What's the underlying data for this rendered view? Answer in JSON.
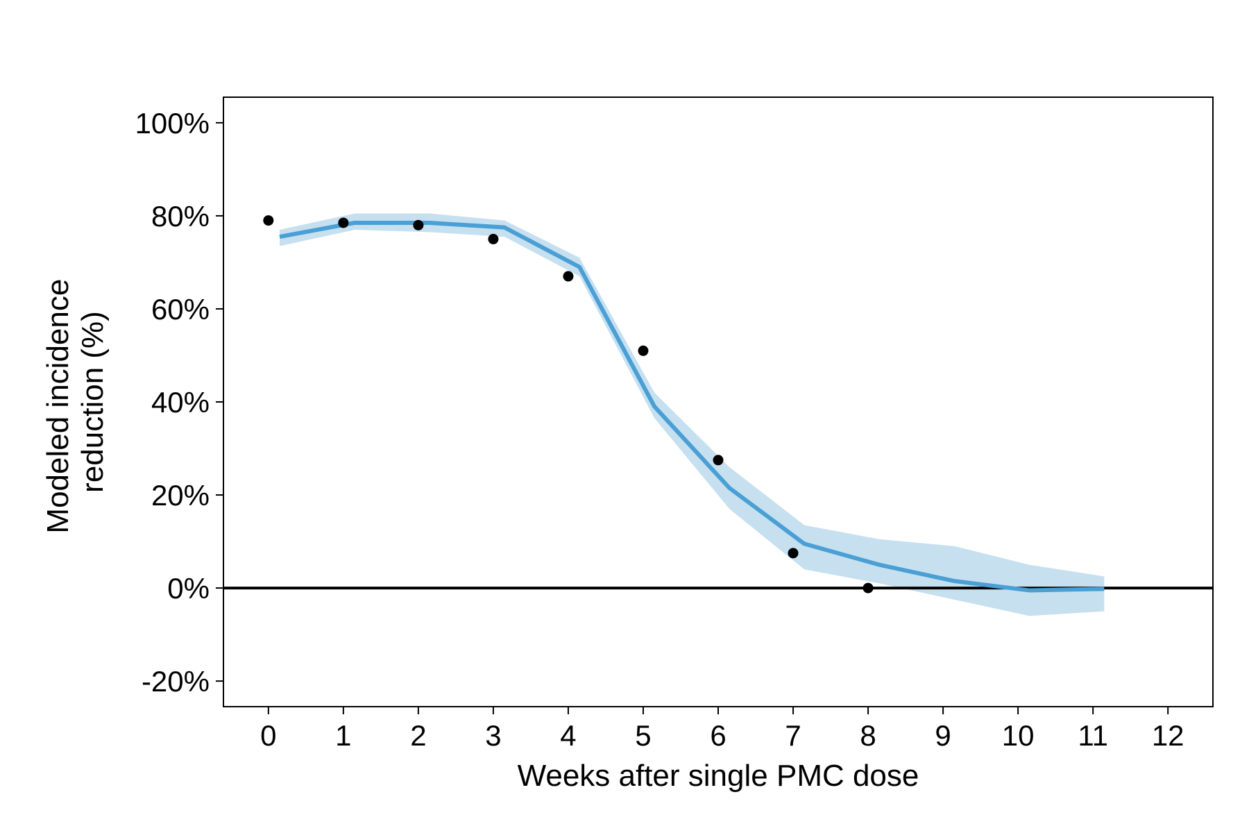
{
  "chart_data": {
    "type": "line",
    "title": "",
    "xlabel": "Weeks after single PMC dose",
    "ylabel_lines": [
      "Modeled incidence",
      "reduction (%)"
    ],
    "xlim": [
      -0.6,
      12.6
    ],
    "ylim": [
      -25.5,
      105.5
    ],
    "x_ticks": [
      0,
      1,
      2,
      3,
      4,
      5,
      6,
      7,
      8,
      9,
      10,
      11,
      12
    ],
    "x_tick_labels": [
      "0",
      "1",
      "2",
      "3",
      "4",
      "5",
      "6",
      "7",
      "8",
      "9",
      "10",
      "11",
      "12"
    ],
    "y_ticks": [
      -20,
      0,
      20,
      40,
      60,
      80,
      100
    ],
    "y_tick_labels": [
      "-20%",
      "0%",
      "20%",
      "40%",
      "60%",
      "80%",
      "100%"
    ],
    "reference_line_y": 0,
    "grid": false,
    "legend": "none",
    "colors": {
      "line": "#4a9fd4",
      "band": "#c6e0f0",
      "points": "#000000",
      "axis": "#000000"
    },
    "series": [
      {
        "type": "line-with-band",
        "x": [
          0.15,
          1.15,
          2.15,
          3.15,
          4.15,
          5.15,
          6.15,
          7.15,
          8.15,
          9.15,
          10.15,
          11.15
        ],
        "y": [
          75.5,
          78.5,
          78.5,
          77.5,
          69.0,
          39.0,
          21.5,
          9.5,
          5.0,
          1.5,
          -0.5,
          -0.2
        ],
        "lower": [
          73.5,
          77.0,
          76.5,
          75.5,
          67.0,
          36.5,
          17.0,
          4.0,
          1.0,
          -2.5,
          -6.0,
          -5.0
        ],
        "upper": [
          77.0,
          80.5,
          80.5,
          79.0,
          71.0,
          42.0,
          26.0,
          13.5,
          10.5,
          9.0,
          5.0,
          2.5
        ]
      },
      {
        "type": "scatter",
        "x": [
          0,
          1,
          2,
          3,
          4,
          5,
          6,
          7,
          8
        ],
        "y": [
          79,
          78.5,
          78,
          75,
          67,
          51,
          27.5,
          7.5,
          0
        ]
      }
    ]
  }
}
